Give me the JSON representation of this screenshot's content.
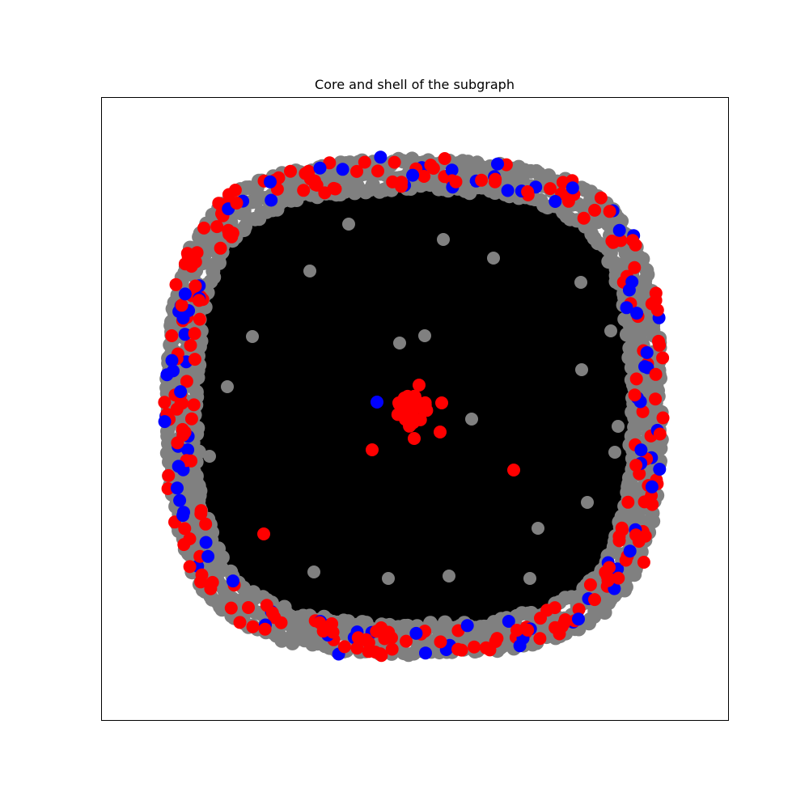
{
  "figure": {
    "title": "Core and shell of the subgraph"
  },
  "legend": [],
  "colors": {
    "background": "#ffffff",
    "axes_frame": "#000000",
    "edges": "#000000",
    "shell_ring_node": "#808080",
    "core_node": "#ff0000",
    "highlight_node_red": "#ff0000",
    "highlight_node_blue": "#0000ff"
  },
  "node_groups": [
    {
      "group": "shell",
      "color": "gray"
    },
    {
      "group": "core",
      "color": "red"
    },
    {
      "group": "marked-red",
      "color": "red"
    },
    {
      "group": "marked-blue",
      "color": "blue"
    }
  ]
}
